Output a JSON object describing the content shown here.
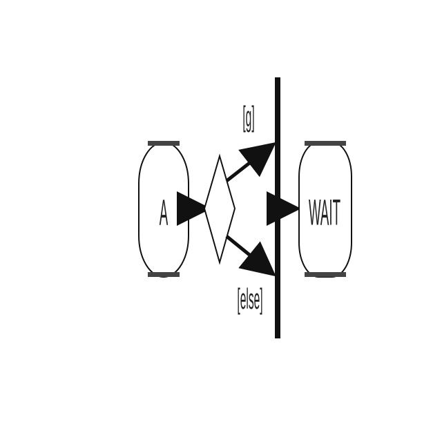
{
  "diagram": {
    "nodes": {
      "action_a": {
        "label": "A"
      },
      "action_wait": {
        "label": "WAIT"
      }
    },
    "guards": {
      "top": "[g]",
      "bottom": "[else]"
    }
  },
  "colors": {
    "stroke": "#111111",
    "band": "#444444",
    "background": "#ffffff"
  }
}
